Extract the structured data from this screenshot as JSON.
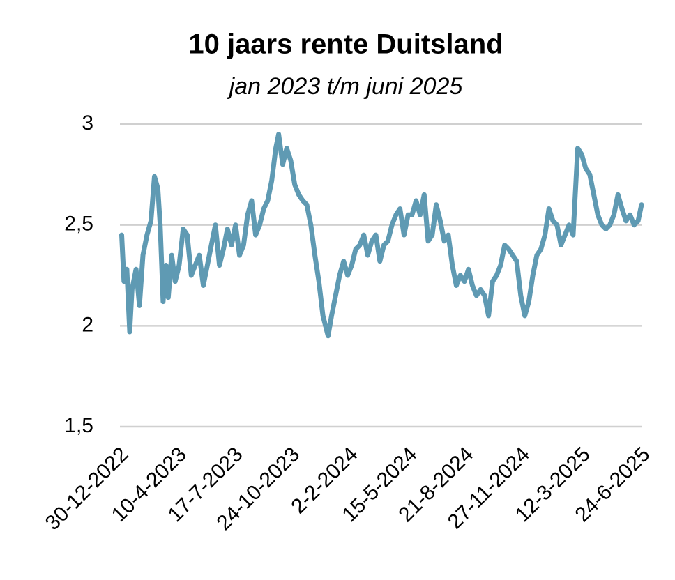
{
  "chart_data": {
    "type": "line",
    "title": "10 jaars rente Duitsland",
    "subtitle": "jan 2023 t/m juni 2025",
    "x": [
      "2-1-2023",
      "6-1-2023",
      "11-1-2023",
      "16-1-2023",
      "20-1-2023",
      "27-1-2023",
      "2-2-2023",
      "8-2-2023",
      "15-2-2023",
      "22-2-2023",
      "28-2-2023",
      "6-3-2023",
      "10-3-2023",
      "15-3-2023",
      "20-3-2023",
      "24-3-2023",
      "30-3-2023",
      "5-4-2023",
      "12-4-2023",
      "19-4-2023",
      "26-4-2023",
      "3-5-2023",
      "10-5-2023",
      "17-5-2023",
      "24-5-2023",
      "31-5-2023",
      "7-6-2023",
      "14-6-2023",
      "21-6-2023",
      "28-6-2023",
      "5-7-2023",
      "12-7-2023",
      "19-7-2023",
      "26-7-2023",
      "2-8-2023",
      "9-8-2023",
      "16-8-2023",
      "23-8-2023",
      "30-8-2023",
      "6-9-2023",
      "13-9-2023",
      "20-9-2023",
      "27-9-2023",
      "2-10-2023",
      "9-10-2023",
      "16-10-2023",
      "23-10-2023",
      "30-10-2023",
      "6-11-2023",
      "13-11-2023",
      "20-11-2023",
      "27-11-2023",
      "4-12-2023",
      "11-12-2023",
      "18-12-2023",
      "27-12-2023",
      "2-1-2024",
      "9-1-2024",
      "16-1-2024",
      "23-1-2024",
      "30-1-2024",
      "6-2-2024",
      "13-2-2024",
      "20-2-2024",
      "27-2-2024",
      "5-3-2024",
      "12-3-2024",
      "19-3-2024",
      "26-3-2024",
      "2-4-2024",
      "9-4-2024",
      "16-4-2024",
      "23-4-2024",
      "30-4-2024",
      "7-5-2024",
      "14-5-2024",
      "21-5-2024",
      "28-5-2024",
      "4-6-2024",
      "11-6-2024",
      "18-6-2024",
      "25-6-2024",
      "2-7-2024",
      "9-7-2024",
      "16-7-2024",
      "23-7-2024",
      "30-7-2024",
      "6-8-2024",
      "13-8-2024",
      "20-8-2024",
      "27-8-2024",
      "3-9-2024",
      "10-9-2024",
      "17-9-2024",
      "24-9-2024",
      "1-10-2024",
      "8-10-2024",
      "15-10-2024",
      "22-10-2024",
      "29-10-2024",
      "5-11-2024",
      "12-11-2024",
      "19-11-2024",
      "26-11-2024",
      "3-12-2024",
      "10-12-2024",
      "17-12-2024",
      "24-12-2024",
      "31-12-2024",
      "7-1-2025",
      "14-1-2025",
      "21-1-2025",
      "28-1-2025",
      "4-2-2025",
      "11-2-2025",
      "18-2-2025",
      "25-2-2025",
      "5-3-2025",
      "12-3-2025",
      "19-3-2025",
      "26-3-2025",
      "2-4-2025",
      "9-4-2025",
      "16-4-2025",
      "23-4-2025",
      "30-4-2025",
      "7-5-2025",
      "14-5-2025",
      "21-5-2025",
      "28-5-2025",
      "4-6-2025",
      "11-6-2025",
      "18-6-2025",
      "24-6-2025"
    ],
    "series": [
      {
        "name": "10 jaars rente",
        "color": "#5f9ab3",
        "values": [
          2.45,
          2.22,
          2.28,
          1.97,
          2.18,
          2.28,
          2.1,
          2.35,
          2.45,
          2.52,
          2.74,
          2.68,
          2.5,
          2.12,
          2.3,
          2.14,
          2.35,
          2.22,
          2.3,
          2.48,
          2.45,
          2.25,
          2.3,
          2.35,
          2.2,
          2.3,
          2.4,
          2.5,
          2.3,
          2.38,
          2.48,
          2.4,
          2.5,
          2.35,
          2.4,
          2.55,
          2.62,
          2.45,
          2.5,
          2.58,
          2.62,
          2.72,
          2.88,
          2.95,
          2.8,
          2.88,
          2.82,
          2.7,
          2.65,
          2.62,
          2.6,
          2.5,
          2.35,
          2.22,
          2.05,
          1.95,
          2.05,
          2.15,
          2.25,
          2.32,
          2.25,
          2.3,
          2.38,
          2.4,
          2.45,
          2.35,
          2.42,
          2.45,
          2.32,
          2.4,
          2.42,
          2.5,
          2.55,
          2.58,
          2.45,
          2.55,
          2.55,
          2.62,
          2.55,
          2.65,
          2.42,
          2.45,
          2.6,
          2.52,
          2.42,
          2.45,
          2.3,
          2.2,
          2.25,
          2.22,
          2.28,
          2.2,
          2.15,
          2.18,
          2.15,
          2.05,
          2.22,
          2.25,
          2.3,
          2.4,
          2.38,
          2.35,
          2.32,
          2.15,
          2.05,
          2.12,
          2.25,
          2.35,
          2.38,
          2.45,
          2.58,
          2.52,
          2.5,
          2.4,
          2.45,
          2.5,
          2.45,
          2.88,
          2.85,
          2.78,
          2.75,
          2.65,
          2.55,
          2.5,
          2.48,
          2.5,
          2.55,
          2.65,
          2.58,
          2.52,
          2.55,
          2.5,
          2.52,
          2.6
        ]
      }
    ],
    "xlim": [
      "30-12-2022",
      "24-6-2025"
    ],
    "xticks": [
      "30-12-2022",
      "10-4-2023",
      "17-7-2023",
      "24-10-2023",
      "2-2-2024",
      "15-5-2024",
      "21-8-2024",
      "27-11-2024",
      "12-3-2025",
      "24-6-2025"
    ],
    "ylim": [
      1.5,
      3
    ],
    "yticks": [
      {
        "value": 1.5,
        "label": "1,5"
      },
      2,
      {
        "value": 2.5,
        "label": "2,5"
      },
      3
    ],
    "grid": true
  }
}
